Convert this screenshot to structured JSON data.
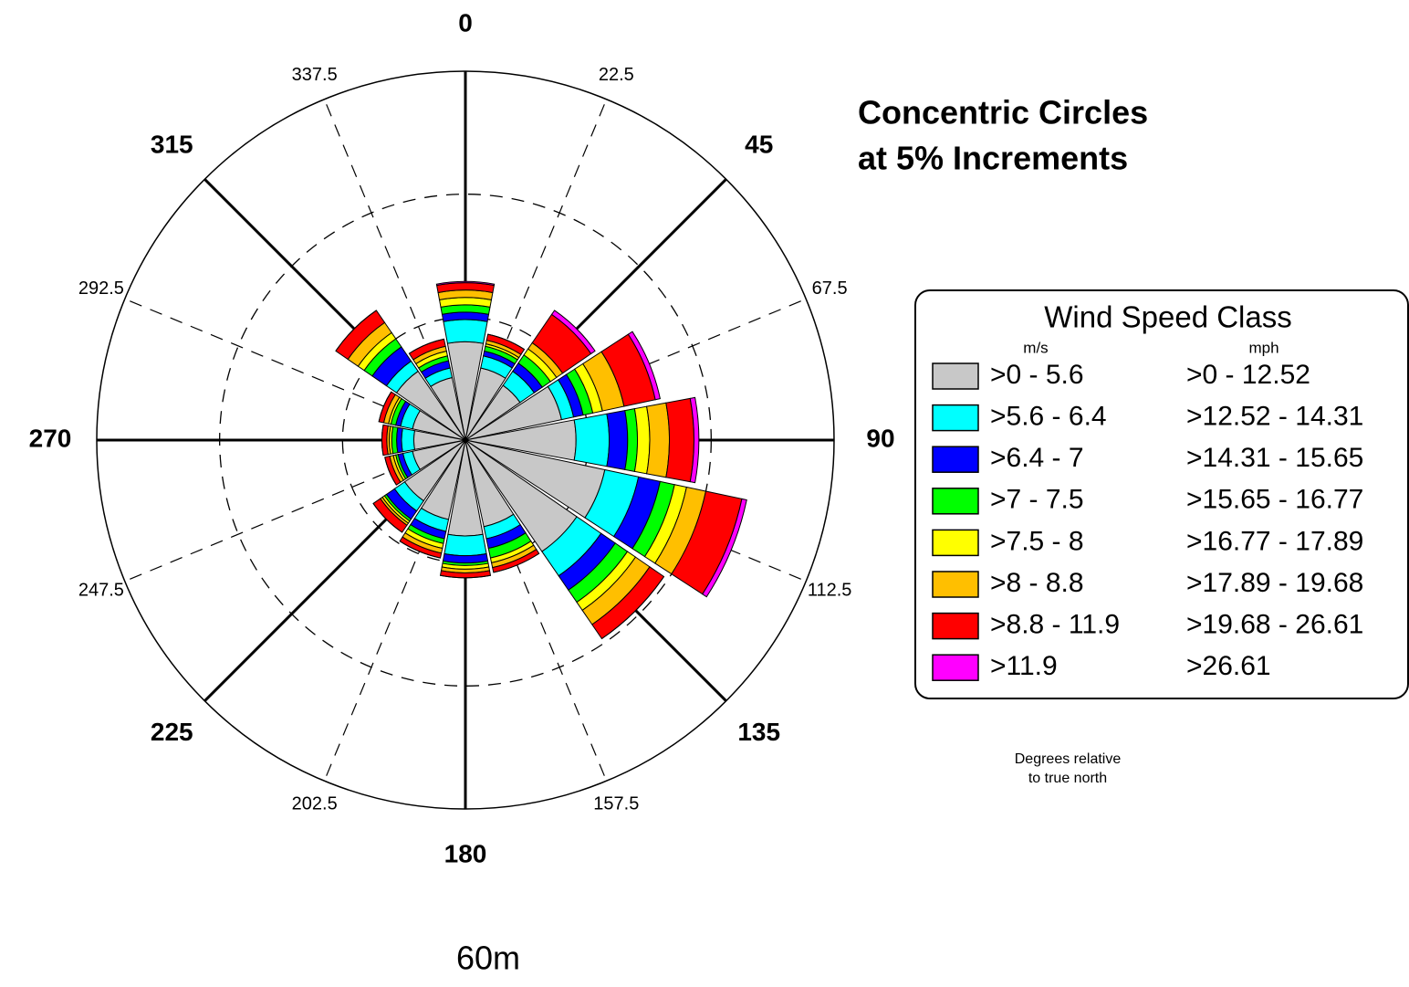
{
  "chart_data": {
    "type": "wind_rose",
    "title_lines": [
      "Concentric Circles",
      "at 5% Increments"
    ],
    "caption": "60m",
    "annotation_lines": [
      "Degrees relative",
      "to true north"
    ],
    "categories": [
      0,
      22.5,
      45,
      67.5,
      90,
      112.5,
      135,
      157.5,
      180,
      202.5,
      225,
      247.5,
      270,
      292.5,
      315,
      337.5
    ],
    "rlim": [
      0,
      15
    ],
    "rticks": [
      5,
      10,
      15
    ],
    "legend": {
      "title": "Wind Speed Class",
      "col1": "m/s",
      "col2": "mph",
      "position": "right"
    },
    "series": [
      {
        "name": ">0 - 5.6",
        "mph": ">0 - 12.52",
        "color": "#c8c8c8",
        "values": [
          4.0,
          3.0,
          2.7,
          4.0,
          4.5,
          5.8,
          5.5,
          3.6,
          3.9,
          3.3,
          3.0,
          2.2,
          2.1,
          2.2,
          3.4,
          2.6
        ]
      },
      {
        "name": ">5.6 - 6.4",
        "mph": ">12.52 - 14.31",
        "color": "#00ffff",
        "values": [
          0.9,
          0.5,
          0.7,
          0.5,
          1.35,
          1.4,
          1.2,
          0.5,
          0.8,
          0.5,
          0.5,
          0.4,
          0.5,
          0.5,
          0.5,
          0.4
        ]
      },
      {
        "name": ">6.4 - 7",
        "mph": ">14.31 - 15.65",
        "color": "#0000ff",
        "values": [
          0.3,
          0.2,
          0.4,
          0.4,
          0.75,
          0.9,
          0.7,
          0.4,
          0.3,
          0.3,
          0.4,
          0.2,
          0.2,
          0.2,
          0.7,
          0.3
        ]
      },
      {
        "name": ">7 - 7.5",
        "mph": ">15.65 - 16.77",
        "color": "#00ff00",
        "values": [
          0.3,
          0.2,
          0.4,
          0.4,
          0.4,
          0.6,
          0.6,
          0.4,
          0.1,
          0.2,
          0.1,
          0.1,
          0.2,
          0.2,
          0.4,
          0.2
        ]
      },
      {
        "name": ">7.5 - 8",
        "mph": ">16.77 - 17.89",
        "color": "#ffff00",
        "values": [
          0.3,
          0.1,
          0.3,
          0.4,
          0.5,
          0.5,
          0.4,
          0.2,
          0.15,
          0.2,
          0.1,
          0.1,
          0.1,
          0.1,
          0.3,
          0.2
        ]
      },
      {
        "name": ">8 - 8.8",
        "mph": ">17.89 - 19.68",
        "color": "#ffbf00",
        "values": [
          0.3,
          0.15,
          0.3,
          0.9,
          0.8,
          0.8,
          0.7,
          0.2,
          0.15,
          0.2,
          0.1,
          0.15,
          0.1,
          0.2,
          0.5,
          0.2
        ]
      },
      {
        "name": ">8.8 - 11.9",
        "mph": ">19.68 - 26.61",
        "color": "#ff0000",
        "values": [
          0.3,
          0.25,
          1.4,
          1.3,
          1.0,
          1.5,
          0.7,
          0.2,
          0.2,
          0.2,
          0.35,
          0.2,
          0.2,
          0.2,
          0.6,
          0.3
        ]
      },
      {
        "name": ">11.9",
        "mph": ">26.61",
        "color": "#ff00ff",
        "values": [
          0.05,
          0,
          0.2,
          0.2,
          0.2,
          0.2,
          0,
          0,
          0,
          0,
          0,
          0,
          0,
          0,
          0,
          0
        ]
      }
    ]
  }
}
